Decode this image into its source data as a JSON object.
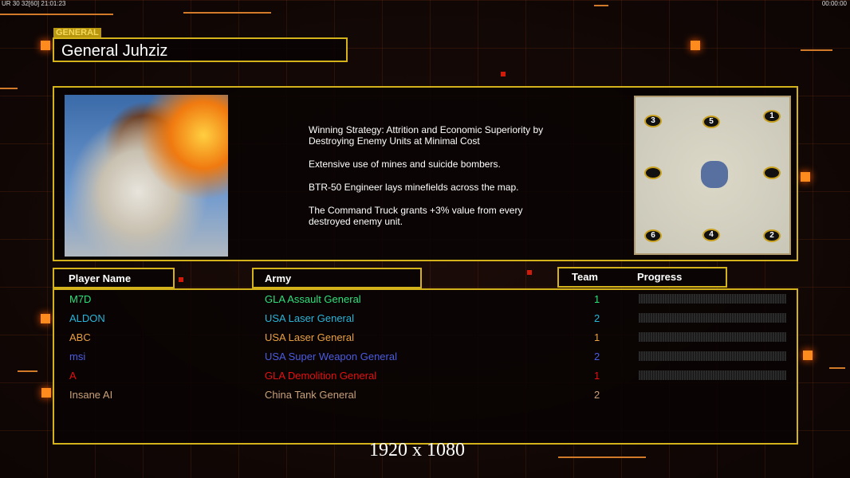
{
  "overlay": {
    "fps": "UR 30 32[60] 21:01:23",
    "clock": "00:00:00",
    "resolution": "1920 x 1080"
  },
  "general": {
    "tag": "GENERAL",
    "name": "General Juhziz",
    "strategy": [
      "Winning Strategy: Attrition and Economic Superiority by\n Destroying Enemy Units at Minimal Cost",
      "Extensive use of mines and suicide bombers.",
      "BTR-50 Engineer lays minefields across the map.",
      "The Command Truck grants +3% value from every\n destroyed enemy unit."
    ]
  },
  "minimap": {
    "slots": [
      "1",
      "2",
      "3",
      "4",
      "5",
      "6",
      "",
      ""
    ]
  },
  "table": {
    "headers": {
      "player": "Player Name",
      "army": "Army",
      "team": "Team",
      "progress": "Progress"
    },
    "rows": [
      {
        "name": "M7D",
        "army": "GLA Assault General",
        "team": "1",
        "color": "#2ee07a",
        "progress": 0
      },
      {
        "name": "ALDON",
        "army": "USA Laser General",
        "team": "2",
        "color": "#2ab4d8",
        "progress": 0
      },
      {
        "name": "ABC",
        "army": "USA Laser General",
        "team": "1",
        "color": "#e8a040",
        "progress": 0
      },
      {
        "name": "msi",
        "army": "USA Super Weapon General",
        "team": "2",
        "color": "#4c5ce0",
        "progress": 0
      },
      {
        "name": "A",
        "army": "GLA Demolition General",
        "team": "1",
        "color": "#e41010",
        "progress": 0
      },
      {
        "name": "Insane AI",
        "army": "China Tank General",
        "team": "2",
        "color": "#c8a07a",
        "progress": null
      }
    ]
  }
}
